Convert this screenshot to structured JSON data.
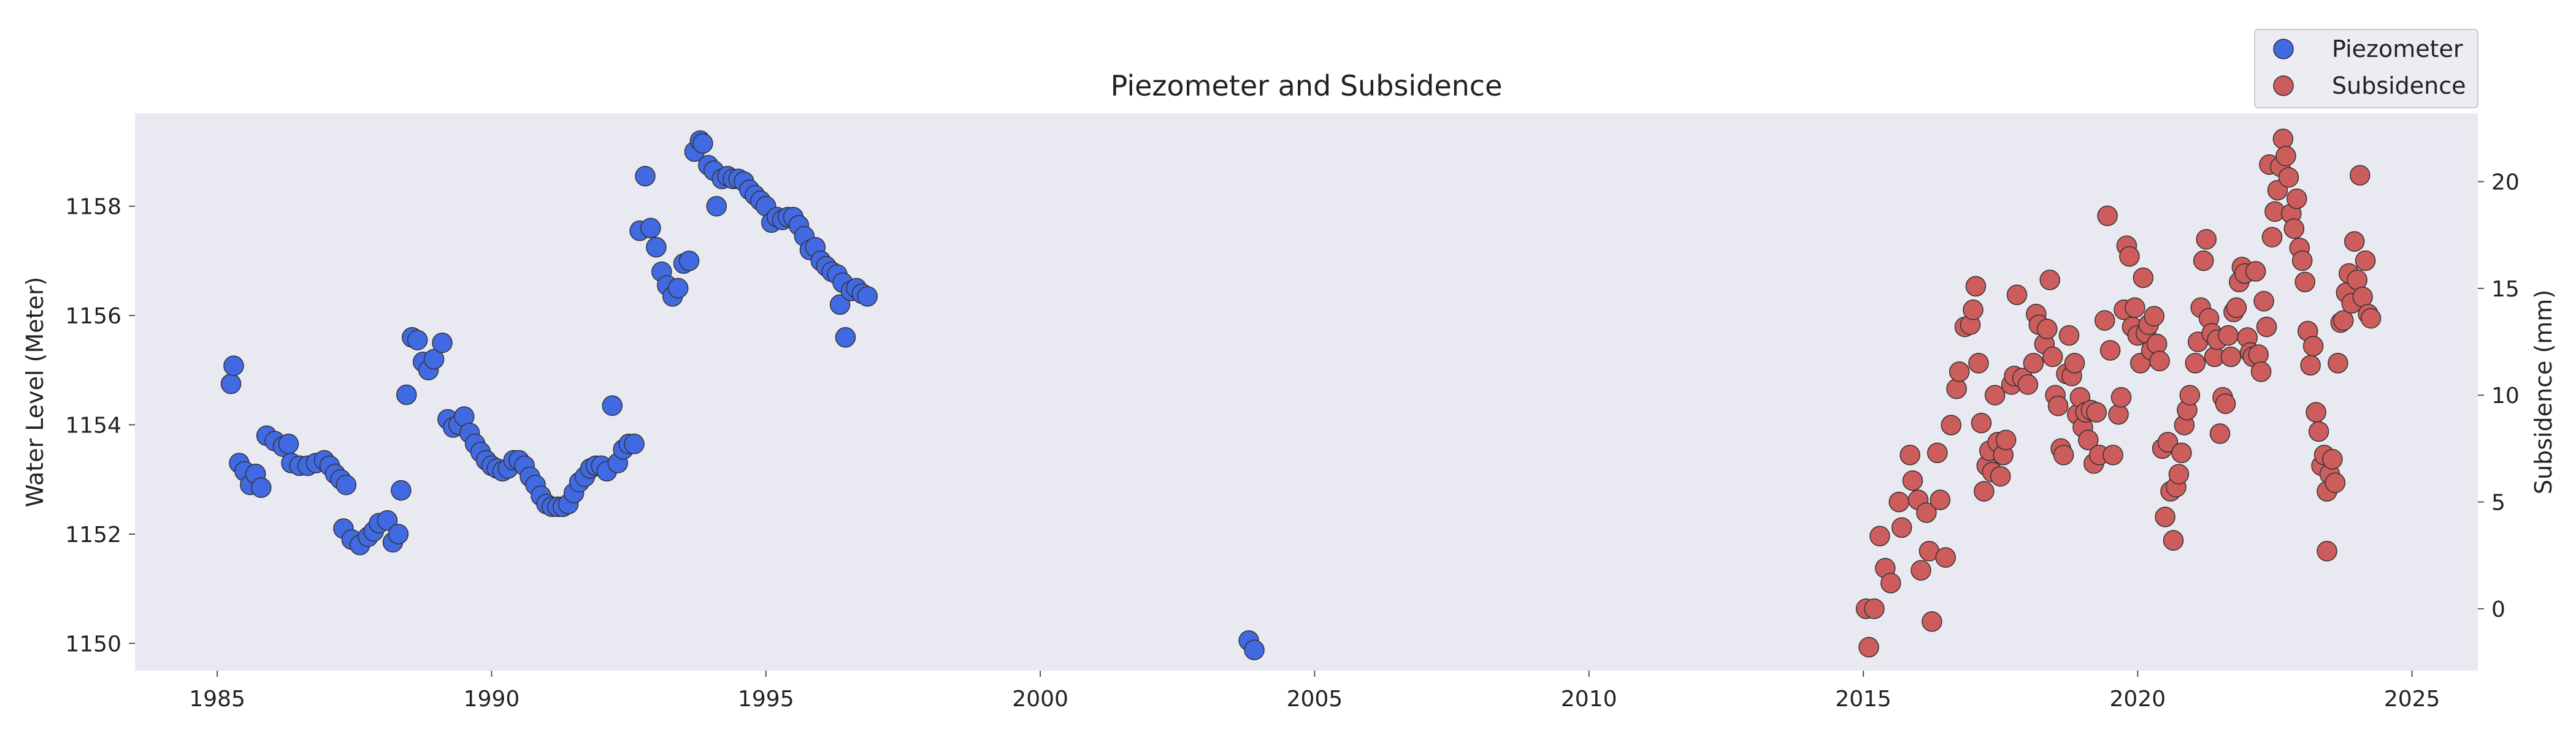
{
  "chart_data": {
    "type": "scatter",
    "title": "Piezometer and Subsidence",
    "xlabel": "",
    "xlim": [
      1983.5,
      2026.2
    ],
    "xticks": [
      1985,
      1990,
      1995,
      2000,
      2005,
      2010,
      2015,
      2020,
      2025
    ],
    "ylabel_left": "Water Level (Meter)",
    "ylim_left": [
      1149.5,
      1159.7
    ],
    "yticks_left": [
      1150,
      1152,
      1154,
      1156,
      1158
    ],
    "ylabel_right": "Subsidence (mm)",
    "ylim_right": [
      -2.9,
      23.2
    ],
    "yticks_right": [
      0,
      5,
      10,
      15,
      20
    ],
    "grid": false,
    "background_color": "#e9e9f1",
    "legend_position": "top-right",
    "series": [
      {
        "name": "Piezometer",
        "axis": "left",
        "color": "#4169e1",
        "points": [
          [
            1985.25,
            1154.75
          ],
          [
            1985.3,
            1155.08
          ],
          [
            1985.4,
            1153.3
          ],
          [
            1985.5,
            1153.15
          ],
          [
            1985.6,
            1152.9
          ],
          [
            1985.7,
            1153.1
          ],
          [
            1985.8,
            1152.85
          ],
          [
            1985.9,
            1153.8
          ],
          [
            1986.05,
            1153.7
          ],
          [
            1986.2,
            1153.6
          ],
          [
            1986.3,
            1153.65
          ],
          [
            1986.35,
            1153.3
          ],
          [
            1986.5,
            1153.25
          ],
          [
            1986.65,
            1153.25
          ],
          [
            1986.8,
            1153.3
          ],
          [
            1986.95,
            1153.35
          ],
          [
            1987.05,
            1153.25
          ],
          [
            1987.15,
            1153.1
          ],
          [
            1987.25,
            1153.0
          ],
          [
            1987.35,
            1152.9
          ],
          [
            1987.3,
            1152.1
          ],
          [
            1987.45,
            1151.9
          ],
          [
            1987.6,
            1151.8
          ],
          [
            1987.75,
            1151.95
          ],
          [
            1987.85,
            1152.05
          ],
          [
            1987.95,
            1152.2
          ],
          [
            1988.1,
            1152.25
          ],
          [
            1988.2,
            1151.85
          ],
          [
            1988.3,
            1152.0
          ],
          [
            1988.35,
            1152.8
          ],
          [
            1988.45,
            1154.55
          ],
          [
            1988.55,
            1155.6
          ],
          [
            1988.65,
            1155.55
          ],
          [
            1988.75,
            1155.15
          ],
          [
            1988.85,
            1155.0
          ],
          [
            1988.95,
            1155.2
          ],
          [
            1989.1,
            1155.5
          ],
          [
            1989.2,
            1154.1
          ],
          [
            1989.3,
            1153.95
          ],
          [
            1989.4,
            1154.0
          ],
          [
            1989.5,
            1154.15
          ],
          [
            1989.6,
            1153.85
          ],
          [
            1989.7,
            1153.65
          ],
          [
            1989.8,
            1153.5
          ],
          [
            1989.9,
            1153.35
          ],
          [
            1990.0,
            1153.25
          ],
          [
            1990.1,
            1153.2
          ],
          [
            1990.2,
            1153.15
          ],
          [
            1990.3,
            1153.2
          ],
          [
            1990.4,
            1153.35
          ],
          [
            1990.5,
            1153.35
          ],
          [
            1990.6,
            1153.25
          ],
          [
            1990.7,
            1153.05
          ],
          [
            1990.8,
            1152.9
          ],
          [
            1990.9,
            1152.7
          ],
          [
            1991.0,
            1152.55
          ],
          [
            1991.1,
            1152.5
          ],
          [
            1991.2,
            1152.5
          ],
          [
            1991.3,
            1152.5
          ],
          [
            1991.4,
            1152.55
          ],
          [
            1991.5,
            1152.75
          ],
          [
            1991.6,
            1152.95
          ],
          [
            1991.7,
            1153.05
          ],
          [
            1991.8,
            1153.2
          ],
          [
            1991.9,
            1153.25
          ],
          [
            1992.0,
            1153.25
          ],
          [
            1992.1,
            1153.15
          ],
          [
            1992.2,
            1154.35
          ],
          [
            1992.3,
            1153.3
          ],
          [
            1992.4,
            1153.55
          ],
          [
            1992.5,
            1153.65
          ],
          [
            1992.6,
            1153.65
          ],
          [
            1992.7,
            1157.55
          ],
          [
            1992.8,
            1158.55
          ],
          [
            1992.9,
            1157.6
          ],
          [
            1993.0,
            1157.25
          ],
          [
            1993.1,
            1156.8
          ],
          [
            1993.2,
            1156.55
          ],
          [
            1993.3,
            1156.35
          ],
          [
            1993.4,
            1156.5
          ],
          [
            1993.5,
            1156.95
          ],
          [
            1993.6,
            1157.0
          ],
          [
            1993.7,
            1159.0
          ],
          [
            1993.8,
            1159.2
          ],
          [
            1993.85,
            1159.15
          ],
          [
            1993.95,
            1158.75
          ],
          [
            1994.05,
            1158.65
          ],
          [
            1994.1,
            1158.0
          ],
          [
            1994.2,
            1158.5
          ],
          [
            1994.3,
            1158.55
          ],
          [
            1994.4,
            1158.5
          ],
          [
            1994.5,
            1158.5
          ],
          [
            1994.6,
            1158.45
          ],
          [
            1994.7,
            1158.3
          ],
          [
            1994.8,
            1158.2
          ],
          [
            1994.9,
            1158.1
          ],
          [
            1995.0,
            1158.0
          ],
          [
            1995.1,
            1157.7
          ],
          [
            1995.2,
            1157.8
          ],
          [
            1995.3,
            1157.75
          ],
          [
            1995.4,
            1157.8
          ],
          [
            1995.5,
            1157.8
          ],
          [
            1995.6,
            1157.65
          ],
          [
            1995.7,
            1157.45
          ],
          [
            1995.8,
            1157.2
          ],
          [
            1995.9,
            1157.25
          ],
          [
            1996.0,
            1157.0
          ],
          [
            1996.1,
            1156.9
          ],
          [
            1996.2,
            1156.8
          ],
          [
            1996.3,
            1156.75
          ],
          [
            1996.4,
            1156.6
          ],
          [
            1996.35,
            1156.2
          ],
          [
            1996.45,
            1155.6
          ],
          [
            1996.55,
            1156.45
          ],
          [
            1996.65,
            1156.5
          ],
          [
            1996.75,
            1156.4
          ],
          [
            1996.85,
            1156.35
          ],
          [
            2003.8,
            1150.05
          ],
          [
            2003.9,
            1149.88
          ]
        ]
      },
      {
        "name": "Subsidence",
        "axis": "right",
        "color": "#cd5c5c",
        "points": [
          [
            2015.05,
            0.0
          ],
          [
            2015.1,
            -1.8
          ],
          [
            2015.2,
            0.0
          ],
          [
            2015.3,
            3.4
          ],
          [
            2015.4,
            1.9
          ],
          [
            2015.5,
            1.2
          ],
          [
            2015.65,
            5.0
          ],
          [
            2015.7,
            3.8
          ],
          [
            2015.85,
            7.2
          ],
          [
            2015.9,
            6.0
          ],
          [
            2016.0,
            5.1
          ],
          [
            2016.05,
            1.8
          ],
          [
            2016.15,
            4.5
          ],
          [
            2016.2,
            2.7
          ],
          [
            2016.25,
            -0.6
          ],
          [
            2016.35,
            7.3
          ],
          [
            2016.4,
            5.1
          ],
          [
            2016.5,
            2.4
          ],
          [
            2016.6,
            8.6
          ],
          [
            2016.7,
            10.3
          ],
          [
            2016.75,
            11.1
          ],
          [
            2016.85,
            13.2
          ],
          [
            2016.95,
            13.3
          ],
          [
            2017.0,
            14.0
          ],
          [
            2017.05,
            15.1
          ],
          [
            2017.1,
            11.5
          ],
          [
            2017.15,
            8.7
          ],
          [
            2017.2,
            5.5
          ],
          [
            2017.25,
            6.7
          ],
          [
            2017.3,
            7.4
          ],
          [
            2017.35,
            6.4
          ],
          [
            2017.4,
            10.0
          ],
          [
            2017.45,
            7.8
          ],
          [
            2017.5,
            6.2
          ],
          [
            2017.55,
            7.2
          ],
          [
            2017.6,
            7.9
          ],
          [
            2017.7,
            10.5
          ],
          [
            2017.75,
            10.9
          ],
          [
            2017.8,
            14.7
          ],
          [
            2017.9,
            10.8
          ],
          [
            2018.0,
            10.5
          ],
          [
            2018.1,
            11.5
          ],
          [
            2018.15,
            13.8
          ],
          [
            2018.2,
            13.3
          ],
          [
            2018.3,
            12.4
          ],
          [
            2018.35,
            13.1
          ],
          [
            2018.4,
            15.4
          ],
          [
            2018.45,
            11.8
          ],
          [
            2018.5,
            10.0
          ],
          [
            2018.55,
            9.5
          ],
          [
            2018.6,
            7.5
          ],
          [
            2018.65,
            7.2
          ],
          [
            2018.7,
            11.0
          ],
          [
            2018.75,
            12.8
          ],
          [
            2018.8,
            10.9
          ],
          [
            2018.85,
            11.5
          ],
          [
            2018.9,
            9.1
          ],
          [
            2018.95,
            9.9
          ],
          [
            2019.0,
            8.5
          ],
          [
            2019.05,
            9.2
          ],
          [
            2019.1,
            7.9
          ],
          [
            2019.15,
            9.3
          ],
          [
            2019.2,
            6.8
          ],
          [
            2019.25,
            9.2
          ],
          [
            2019.3,
            7.2
          ],
          [
            2019.4,
            13.5
          ],
          [
            2019.45,
            18.4
          ],
          [
            2019.5,
            12.1
          ],
          [
            2019.55,
            7.2
          ],
          [
            2019.65,
            9.1
          ],
          [
            2019.7,
            9.9
          ],
          [
            2019.75,
            14.0
          ],
          [
            2019.8,
            17.0
          ],
          [
            2019.85,
            16.5
          ],
          [
            2019.9,
            13.2
          ],
          [
            2019.95,
            14.1
          ],
          [
            2020.0,
            12.8
          ],
          [
            2020.05,
            11.5
          ],
          [
            2020.1,
            15.5
          ],
          [
            2020.15,
            12.9
          ],
          [
            2020.2,
            13.3
          ],
          [
            2020.25,
            12.1
          ],
          [
            2020.3,
            13.7
          ],
          [
            2020.35,
            12.4
          ],
          [
            2020.4,
            11.6
          ],
          [
            2020.45,
            7.5
          ],
          [
            2020.5,
            4.3
          ],
          [
            2020.55,
            7.8
          ],
          [
            2020.6,
            5.5
          ],
          [
            2020.65,
            3.2
          ],
          [
            2020.7,
            5.7
          ],
          [
            2020.75,
            6.3
          ],
          [
            2020.8,
            7.3
          ],
          [
            2020.85,
            8.6
          ],
          [
            2020.9,
            9.3
          ],
          [
            2020.95,
            10.0
          ],
          [
            2021.05,
            11.5
          ],
          [
            2021.1,
            12.5
          ],
          [
            2021.15,
            14.1
          ],
          [
            2021.2,
            16.3
          ],
          [
            2021.25,
            17.3
          ],
          [
            2021.3,
            13.6
          ],
          [
            2021.35,
            12.9
          ],
          [
            2021.4,
            11.8
          ],
          [
            2021.45,
            12.6
          ],
          [
            2021.5,
            8.2
          ],
          [
            2021.55,
            9.9
          ],
          [
            2021.6,
            9.6
          ],
          [
            2021.65,
            12.8
          ],
          [
            2021.7,
            11.8
          ],
          [
            2021.75,
            13.9
          ],
          [
            2021.8,
            14.1
          ],
          [
            2021.85,
            15.3
          ],
          [
            2021.9,
            16.0
          ],
          [
            2021.95,
            15.7
          ],
          [
            2022.0,
            12.7
          ],
          [
            2022.05,
            12.0
          ],
          [
            2022.1,
            11.8
          ],
          [
            2022.15,
            15.8
          ],
          [
            2022.2,
            11.9
          ],
          [
            2022.25,
            11.1
          ],
          [
            2022.3,
            14.4
          ],
          [
            2022.35,
            13.2
          ],
          [
            2022.4,
            20.8
          ],
          [
            2022.45,
            17.4
          ],
          [
            2022.5,
            18.6
          ],
          [
            2022.55,
            19.6
          ],
          [
            2022.6,
            20.7
          ],
          [
            2022.65,
            22.0
          ],
          [
            2022.7,
            21.2
          ],
          [
            2022.75,
            20.2
          ],
          [
            2022.8,
            18.5
          ],
          [
            2022.85,
            17.8
          ],
          [
            2022.9,
            19.2
          ],
          [
            2022.95,
            16.9
          ],
          [
            2023.0,
            16.3
          ],
          [
            2023.05,
            15.3
          ],
          [
            2023.1,
            13.0
          ],
          [
            2023.15,
            11.4
          ],
          [
            2023.2,
            12.3
          ],
          [
            2023.25,
            9.2
          ],
          [
            2023.3,
            8.3
          ],
          [
            2023.35,
            6.7
          ],
          [
            2023.4,
            7.2
          ],
          [
            2023.45,
            5.5
          ],
          [
            2023.5,
            6.3
          ],
          [
            2023.55,
            7.0
          ],
          [
            2023.6,
            5.9
          ],
          [
            2023.65,
            11.5
          ],
          [
            2023.7,
            13.4
          ],
          [
            2023.75,
            13.5
          ],
          [
            2023.8,
            14.8
          ],
          [
            2023.85,
            15.7
          ],
          [
            2023.9,
            14.3
          ],
          [
            2023.95,
            17.2
          ],
          [
            2024.0,
            15.4
          ],
          [
            2024.05,
            20.3
          ],
          [
            2024.1,
            14.6
          ],
          [
            2024.15,
            16.3
          ],
          [
            2024.2,
            13.8
          ],
          [
            2024.25,
            13.6
          ],
          [
            2023.45,
            2.7
          ]
        ]
      }
    ]
  }
}
